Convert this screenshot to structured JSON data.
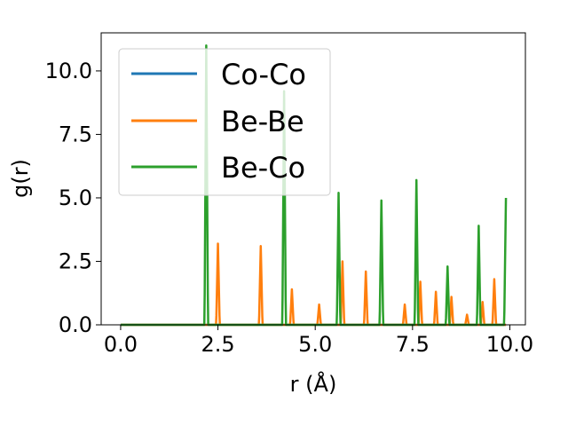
{
  "chart_data": {
    "type": "line",
    "title": "",
    "xlabel": "r (Å)",
    "ylabel": "g(r)",
    "xlim": [
      -0.5,
      10.4
    ],
    "ylim": [
      0,
      11.5
    ],
    "xticks": [
      0.0,
      2.5,
      5.0,
      7.5,
      10.0
    ],
    "xtick_labels": [
      "0.0",
      "2.5",
      "5.0",
      "7.5",
      "10.0"
    ],
    "yticks": [
      0.0,
      2.5,
      5.0,
      7.5,
      10.0
    ],
    "ytick_labels": [
      "0.0",
      "2.5",
      "5.0",
      "7.5",
      "10.0"
    ],
    "grid": false,
    "legend_position": "upper-left",
    "colors": {
      "co_co": "#1f77b4",
      "be_be": "#ff7f0e",
      "be_co": "#2ca02c"
    },
    "series": [
      {
        "name": "Co-Co",
        "color": "#1f77b4",
        "x": [
          0.0,
          9.9
        ],
        "y": [
          0.0,
          0.0
        ]
      },
      {
        "name": "Be-Be",
        "color": "#ff7f0e",
        "peaks": [
          [
            2.5,
            3.2
          ],
          [
            3.6,
            3.1
          ],
          [
            4.4,
            1.4
          ],
          [
            5.1,
            0.8
          ],
          [
            5.7,
            2.5
          ],
          [
            6.3,
            2.1
          ],
          [
            7.3,
            0.8
          ],
          [
            7.7,
            1.7
          ],
          [
            8.1,
            1.3
          ],
          [
            8.5,
            1.1
          ],
          [
            8.9,
            0.4
          ],
          [
            9.3,
            0.9
          ],
          [
            9.6,
            1.8
          ]
        ]
      },
      {
        "name": "Be-Co",
        "color": "#2ca02c",
        "peaks": [
          [
            2.2,
            11.0
          ],
          [
            4.2,
            9.2
          ],
          [
            5.6,
            5.2
          ],
          [
            6.7,
            4.9
          ],
          [
            7.6,
            5.7
          ],
          [
            8.4,
            2.3
          ],
          [
            9.2,
            3.9
          ],
          [
            9.9,
            5.0
          ]
        ]
      }
    ]
  }
}
